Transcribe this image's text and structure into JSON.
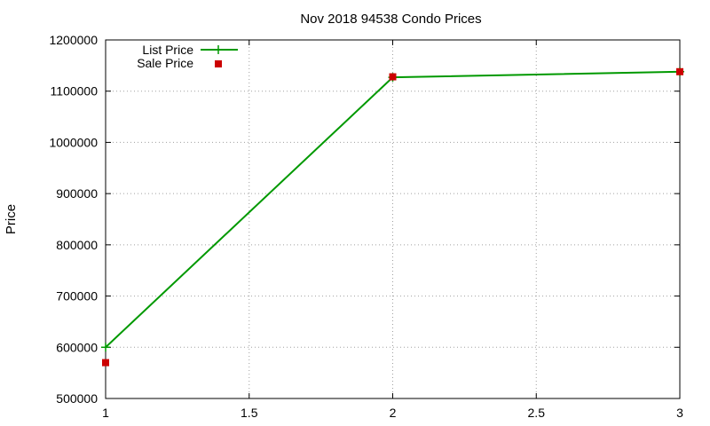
{
  "chart_data": {
    "type": "line",
    "title": "Nov 2018 94538 Condo Prices",
    "xlabel": "",
    "ylabel": "Price",
    "xlim": [
      1,
      3
    ],
    "ylim": [
      500000,
      1200000
    ],
    "x_ticks": [
      "1",
      "1.5",
      "2",
      "2.5",
      "3"
    ],
    "y_ticks": [
      "500000",
      "600000",
      "700000",
      "800000",
      "900000",
      "1000000",
      "1100000",
      "1200000"
    ],
    "grid": true,
    "legend_position": "top-left",
    "series": [
      {
        "name": "List Price",
        "style": "lines-points",
        "color": "#009900",
        "x": [
          1,
          2,
          3
        ],
        "y": [
          600000,
          1127000,
          1138000
        ]
      },
      {
        "name": "Sale Price",
        "style": "points",
        "color": "#cc0000",
        "x": [
          1,
          2,
          3
        ],
        "y": [
          570000,
          1128000,
          1138000
        ]
      }
    ]
  }
}
